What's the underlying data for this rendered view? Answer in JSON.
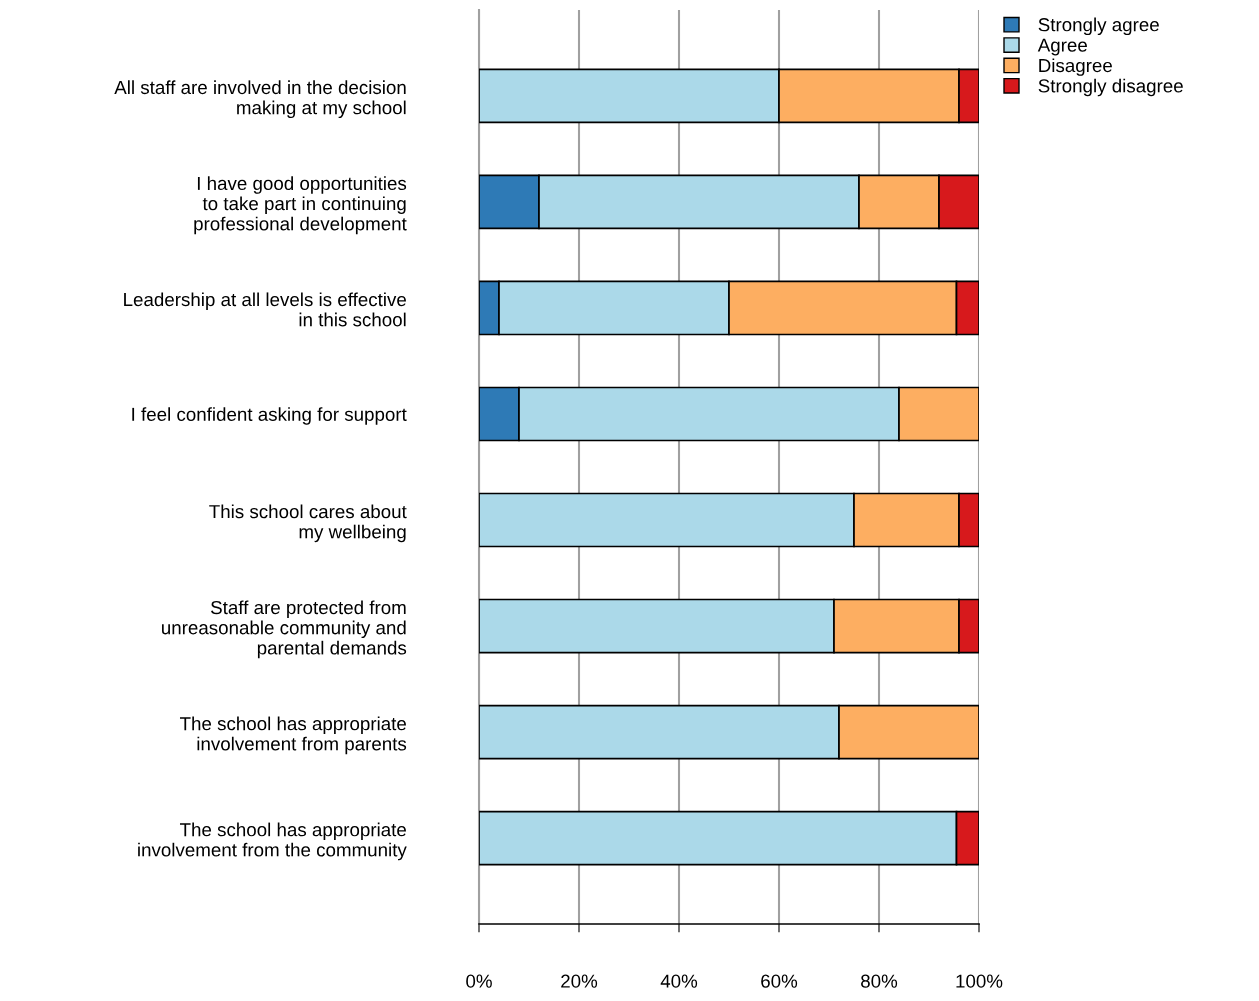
{
  "chart_data": {
    "type": "bar",
    "orientation": "horizontal",
    "stacked": true,
    "categories": [
      "All staff are involved in the decision\nmaking at my school",
      "I have good opportunities\nto take part in continuing\nprofessional development",
      "Leadership at all levels is effective\nin this school",
      "I feel confident asking for support",
      "This school cares about\nmy wellbeing",
      "Staff are protected from\nunreasonable community and\nparental demands",
      "The school has appropriate\ninvolvement from parents",
      "The school has appropriate\ninvolvement from the community"
    ],
    "series": [
      {
        "name": "Strongly agree",
        "color": "#2e7ab6",
        "values": [
          null,
          12,
          4,
          8,
          null,
          null,
          null,
          null
        ]
      },
      {
        "name": "Agree",
        "color": "#abd9e9",
        "values": [
          60,
          64,
          46,
          76,
          75,
          71,
          72,
          95.5
        ]
      },
      {
        "name": "Disagree",
        "color": "#fdae61",
        "values": [
          36,
          16,
          45.5,
          16,
          21,
          25,
          28,
          null
        ]
      },
      {
        "name": "Strongly disagree",
        "color": "#d7191c",
        "values": [
          4,
          8,
          4.5,
          null,
          4,
          4,
          null,
          4.5
        ]
      }
    ],
    "xlim": [
      0,
      100
    ],
    "xticks": [
      {
        "value": 0,
        "label": "0%"
      },
      {
        "value": 20,
        "label": "20%"
      },
      {
        "value": 40,
        "label": "40%"
      },
      {
        "value": 60,
        "label": "60%"
      },
      {
        "value": 80,
        "label": "80%"
      },
      {
        "value": 100,
        "label": "100%"
      }
    ],
    "grid": "x",
    "legend": "top right"
  }
}
